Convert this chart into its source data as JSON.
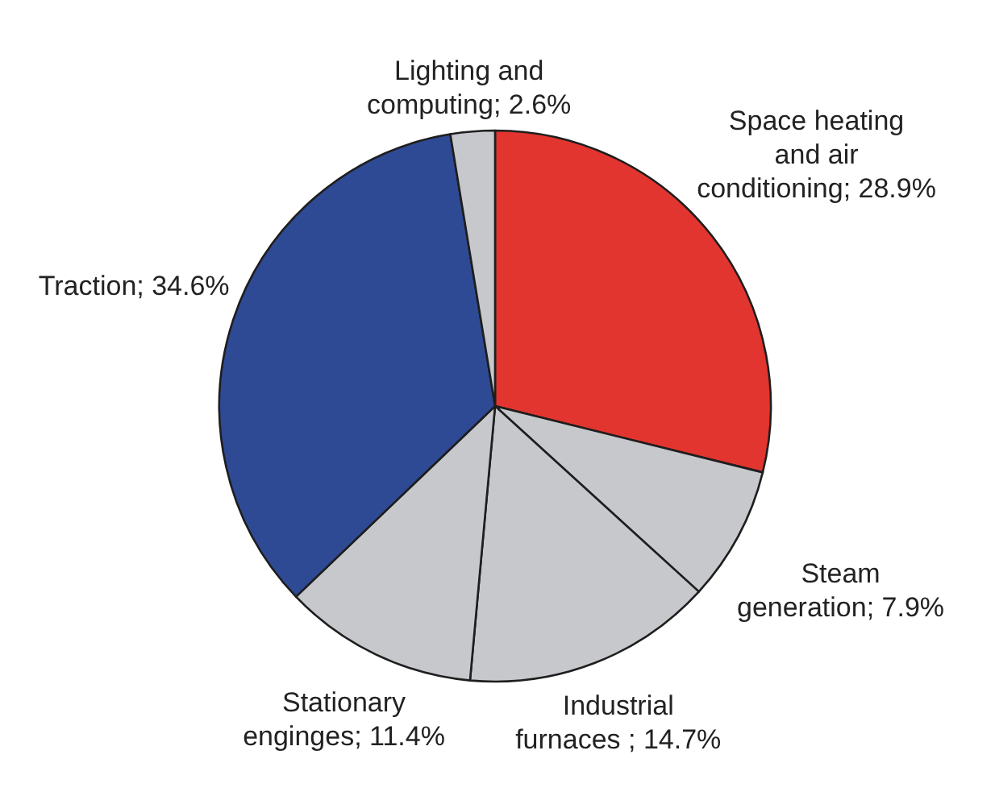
{
  "chart_data": {
    "type": "pie",
    "categories": [
      "Space heating and air conditioning",
      "Steam generation",
      "Industrial furnaces ",
      "Stationary enginges",
      "Traction",
      "Lighting and computing"
    ],
    "values": [
      28.9,
      7.9,
      14.7,
      11.4,
      34.6,
      2.6
    ],
    "value_labels": [
      "28.9%",
      "7.9%",
      "14.7%",
      "11.4%",
      "34.6%",
      "2.6%"
    ],
    "colors": [
      "#e2352f",
      "#c7c8cc",
      "#c7c8cc",
      "#c7c8cc",
      "#2f4a95",
      "#c7c8cc"
    ]
  }
}
